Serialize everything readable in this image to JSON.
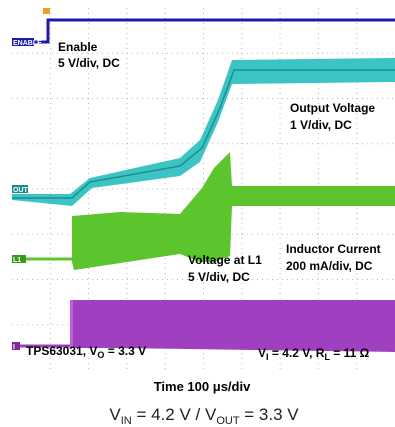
{
  "chart_data": {
    "type": "line",
    "xlabel_parts": [
      "Time 100 ",
      "μ",
      "s/div"
    ],
    "caption": {
      "v_in_main": "V",
      "v_in_sub": "IN",
      "v_in_val": " = 4.2 V / ",
      "v_out_main": "V",
      "v_out_sub": "OUT",
      "v_out_val": " = 3.3 V"
    },
    "channel_markers": [
      "ENABLE",
      "OUT",
      "L1",
      "I"
    ],
    "annotations": {
      "enable": [
        "Enable",
        "5 V/div, DC"
      ],
      "output": [
        "Output Voltage",
        "1 V/div, DC"
      ],
      "l1": [
        "Voltage at L1",
        "5 V/div, DC"
      ],
      "inductor": [
        "Inductor Current",
        "200 mA/div, DC"
      ],
      "device": {
        "pre": "TPS63031, V",
        "sub": "O",
        "post": " = 3.3 V"
      },
      "conditions": {
        "p1": "V",
        "s1": "I",
        "p2": " = 4.2 V, R",
        "s2": "L",
        "p3": " = 11 Ω"
      }
    },
    "grid": true,
    "series": [
      {
        "name": "Enable",
        "color": "#1c1ca8",
        "values": [
          [
            0,
            0
          ],
          [
            0.7,
            0
          ],
          [
            0.72,
            5
          ],
          [
            10,
            5
          ]
        ]
      },
      {
        "name": "Output Voltage",
        "color": "#3cc4c4",
        "values": [
          [
            0,
            0
          ],
          [
            0.8,
            0
          ],
          [
            1.3,
            0.15
          ],
          [
            3.2,
            0.6
          ],
          [
            4.5,
            1.0
          ],
          [
            5.3,
            3.3
          ],
          [
            10,
            3.3
          ]
        ]
      },
      {
        "name": "Voltage at L1",
        "color": "#5cc42c",
        "values": [
          [
            0,
            0
          ],
          [
            1.3,
            0
          ],
          [
            2.5,
            0.2
          ],
          [
            4.3,
            0.4
          ],
          [
            5.2,
            1.5
          ],
          [
            5.5,
            2.2
          ],
          [
            10,
            2.2
          ]
        ]
      },
      {
        "name": "Inductor Current",
        "color": "#a040c0",
        "values": [
          [
            0,
            0
          ],
          [
            1.3,
            0
          ],
          [
            1.35,
            0.4
          ],
          [
            2.5,
            0.35
          ],
          [
            4.5,
            0.35
          ],
          [
            10,
            0.35
          ]
        ]
      }
    ]
  }
}
